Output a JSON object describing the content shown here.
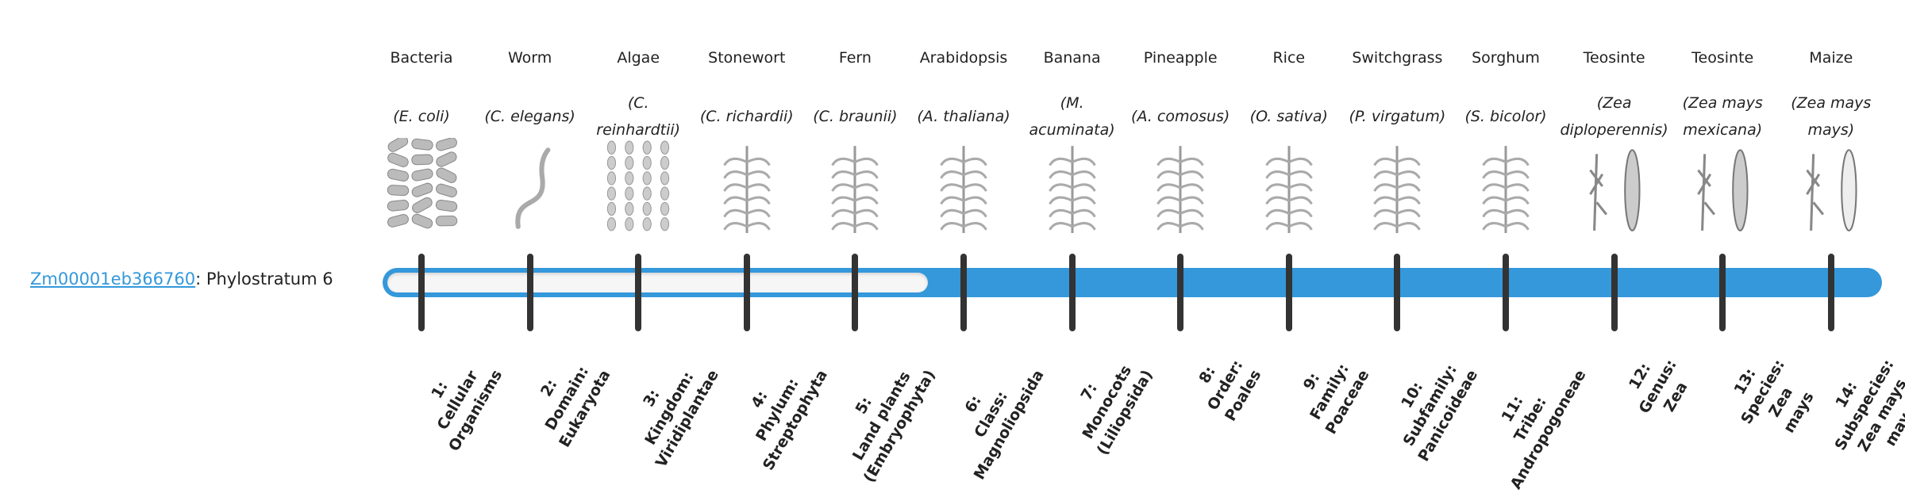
{
  "gene": {
    "id": "Zm00001eb366760",
    "suffix": ": Phylostratum 6",
    "phylostratum": 6
  },
  "colors": {
    "bar": "#3498db",
    "tick": "#333333",
    "link": "#3498db"
  },
  "organisms": [
    {
      "common": "Bacteria",
      "scientific": "(E. coli)",
      "icon": "bacteria-icon",
      "stratum": [
        "1:",
        "Cellular",
        "Organisms"
      ]
    },
    {
      "common": "Worm",
      "scientific": "(C. elegans)",
      "icon": "worm-icon",
      "stratum": [
        "2:",
        "Domain:",
        "Eukaryota"
      ]
    },
    {
      "common": "Algae",
      "scientific": "(C. reinhardtii)",
      "icon": "algae-icon",
      "stratum": [
        "3:",
        "Kingdom:",
        "Viridiplantae"
      ]
    },
    {
      "common": "Stonewort",
      "scientific": "(C. richardii)",
      "icon": "stonewort-icon",
      "stratum": [
        "4:",
        "Phylum:",
        "Streptophyta"
      ]
    },
    {
      "common": "Fern",
      "scientific": "(C. braunii)",
      "icon": "fern-icon",
      "stratum": [
        "5:",
        "Land plants",
        "(Embryophyta)"
      ]
    },
    {
      "common": "Arabidopsis",
      "scientific": "(A. thaliana)",
      "icon": "arabidopsis-icon",
      "stratum": [
        "6:",
        "Class:",
        "Magnoliopsida"
      ]
    },
    {
      "common": "Banana",
      "scientific": "(M. acuminata)",
      "icon": "banana-icon",
      "stratum": [
        "7:",
        "Monocots",
        "(Liliopsida)"
      ]
    },
    {
      "common": "Pineapple",
      "scientific": "(A. comosus)",
      "icon": "pineapple-icon",
      "stratum": [
        "8:",
        "Order:",
        "Poales"
      ]
    },
    {
      "common": "Rice",
      "scientific": "(O. sativa)",
      "icon": "rice-icon",
      "stratum": [
        "9:",
        "Family:",
        "Poaceae"
      ]
    },
    {
      "common": "Switchgrass",
      "scientific": "(P. virgatum)",
      "icon": "switchgrass-icon",
      "stratum": [
        "10:",
        "Subfamily:",
        "Panicoideae"
      ]
    },
    {
      "common": "Sorghum",
      "scientific": "(S. bicolor)",
      "icon": "sorghum-icon",
      "stratum": [
        "11:",
        "Tribe:",
        "Andropogoneae"
      ]
    },
    {
      "common": "Teosinte",
      "scientific": "(Zea diploperennis)",
      "icon": "teosinte-icon",
      "stratum": [
        "12:",
        "Genus:",
        "Zea"
      ]
    },
    {
      "common": "Teosinte",
      "scientific": "(Zea mays mexicana)",
      "icon": "teosinte-icon",
      "stratum": [
        "13:",
        "Species:",
        "Zea",
        "mays"
      ]
    },
    {
      "common": "Maize",
      "scientific": "(Zea mays mays)",
      "icon": "maize-icon",
      "stratum": [
        "14:",
        "Subspecies:",
        "Zea mays",
        "mays"
      ]
    }
  ]
}
